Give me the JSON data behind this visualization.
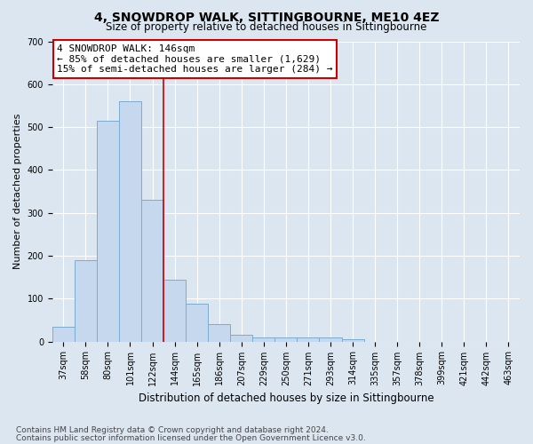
{
  "title": "4, SNOWDROP WALK, SITTINGBOURNE, ME10 4EZ",
  "subtitle": "Size of property relative to detached houses in Sittingbourne",
  "xlabel": "Distribution of detached houses by size in Sittingbourne",
  "ylabel": "Number of detached properties",
  "categories": [
    "37sqm",
    "58sqm",
    "80sqm",
    "101sqm",
    "122sqm",
    "144sqm",
    "165sqm",
    "186sqm",
    "207sqm",
    "229sqm",
    "250sqm",
    "271sqm",
    "293sqm",
    "314sqm",
    "335sqm",
    "357sqm",
    "378sqm",
    "399sqm",
    "421sqm",
    "442sqm",
    "463sqm"
  ],
  "values": [
    35,
    190,
    515,
    560,
    330,
    145,
    88,
    40,
    15,
    10,
    10,
    10,
    10,
    5,
    0,
    0,
    0,
    0,
    0,
    0,
    0
  ],
  "bar_color": "#c5d8ed",
  "bar_edge_color": "#7aabce",
  "vline_x_index": 5,
  "vline_color": "#cc0000",
  "annotation_line1": "4 SNOWDROP WALK: 146sqm",
  "annotation_line2": "← 85% of detached houses are smaller (1,629)",
  "annotation_line3": "15% of semi-detached houses are larger (284) →",
  "annotation_box_color": "#ffffff",
  "annotation_box_edge": "#cc0000",
  "ylim": [
    0,
    700
  ],
  "yticks": [
    0,
    100,
    200,
    300,
    400,
    500,
    600,
    700
  ],
  "background_color": "#dce6f1",
  "plot_bg_color": "#dce6f1",
  "grid_color": "#ffffff",
  "footer1": "Contains HM Land Registry data © Crown copyright and database right 2024.",
  "footer2": "Contains public sector information licensed under the Open Government Licence v3.0.",
  "title_fontsize": 10,
  "subtitle_fontsize": 8.5,
  "xlabel_fontsize": 8.5,
  "ylabel_fontsize": 8,
  "tick_fontsize": 7,
  "annot_fontsize": 8,
  "footer_fontsize": 6.5
}
